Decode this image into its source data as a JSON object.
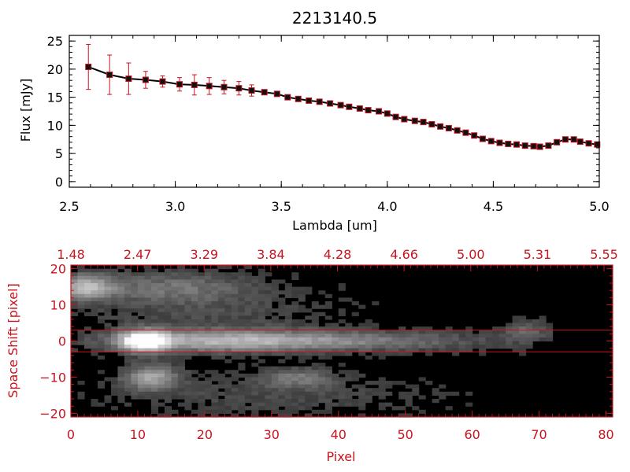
{
  "chart_data": [
    {
      "type": "line",
      "title": "2213140.5",
      "xlabel": "Lambda [um]",
      "ylabel": "Flux [mJy]",
      "xlim": [
        2.5,
        5.0
      ],
      "ylim": [
        -1,
        26
      ],
      "xticks": [
        "2.5",
        "3.0",
        "3.5",
        "4.0",
        "4.5",
        "5.0"
      ],
      "yticks": [
        "0",
        "5",
        "10",
        "15",
        "20",
        "25"
      ],
      "ytick_values": [
        0,
        5,
        10,
        15,
        20,
        25
      ],
      "xtick_values": [
        2.5,
        3.0,
        3.5,
        4.0,
        4.5,
        5.0
      ],
      "line_color": "#000000",
      "marker_color": "#c8141e",
      "errorbar_color": "#c8141e",
      "series": [
        {
          "x": [
            2.59,
            2.69,
            2.78,
            2.86,
            2.94,
            3.02,
            3.09,
            3.16,
            3.23,
            3.3,
            3.36,
            3.42,
            3.48,
            3.53,
            3.58,
            3.63,
            3.68,
            3.73,
            3.78,
            3.82,
            3.87,
            3.91,
            3.96,
            4.0,
            4.04,
            4.08,
            4.13,
            4.17,
            4.21,
            4.25,
            4.29,
            4.33,
            4.37,
            4.41,
            4.45,
            4.49,
            4.53,
            4.57,
            4.61,
            4.65,
            4.69,
            4.72,
            4.76,
            4.8,
            4.84,
            4.88,
            4.91,
            4.95,
            4.99
          ],
          "y": [
            20.4,
            19.0,
            18.3,
            18.1,
            17.8,
            17.3,
            17.2,
            17.0,
            16.8,
            16.6,
            16.2,
            15.9,
            15.6,
            15.0,
            14.7,
            14.4,
            14.2,
            13.9,
            13.6,
            13.3,
            13.0,
            12.7,
            12.5,
            12.1,
            11.5,
            11.1,
            10.8,
            10.6,
            10.2,
            9.8,
            9.5,
            9.1,
            8.7,
            8.2,
            7.6,
            7.2,
            6.9,
            6.7,
            6.6,
            6.4,
            6.3,
            6.2,
            6.4,
            7.0,
            7.5,
            7.5,
            7.1,
            6.8,
            6.6
          ],
          "yerr": [
            4.0,
            3.5,
            2.8,
            1.5,
            1.0,
            1.2,
            1.8,
            1.5,
            1.2,
            1.2,
            1.0,
            0.4,
            0.4,
            0.3,
            0.3,
            0.3,
            0.3,
            0.3,
            0.3,
            0.3,
            0.3,
            0.3,
            0.3,
            0.3,
            0.3,
            0.3,
            0.3,
            0.3,
            0.3,
            0.3,
            0.3,
            0.3,
            0.3,
            0.3,
            0.3,
            0.3,
            0.3,
            0.3,
            0.3,
            0.3,
            0.3,
            0.3,
            0.3,
            0.3,
            0.3,
            0.3,
            0.3,
            0.3,
            0.3
          ]
        }
      ]
    },
    {
      "type": "heatmap",
      "xlabel": "Pixel",
      "ylabel": "Space Shift [pixel]",
      "xlim": [
        0,
        81
      ],
      "ylim": [
        -21,
        21
      ],
      "xticks": [
        "0",
        "10",
        "20",
        "30",
        "40",
        "50",
        "60",
        "70",
        "80"
      ],
      "xtick_values": [
        0,
        10,
        20,
        30,
        40,
        50,
        60,
        70,
        80
      ],
      "yticks": [
        "−20",
        "−10",
        "0",
        "10",
        "20"
      ],
      "ytick_values": [
        -20,
        -10,
        0,
        10,
        20
      ],
      "top_axis_ticks": [
        "1.48",
        "2.47",
        "3.29",
        "3.84",
        "4.28",
        "4.66",
        "5.00",
        "5.31",
        "5.55"
      ],
      "axis_color": "#c8141e",
      "extraction_lines": [
        3,
        -3
      ],
      "colormap": "grayscale",
      "features": [
        {
          "x": 11,
          "y": 0,
          "peak": 1.0,
          "sx": 2.5,
          "sy": 2.0
        },
        {
          "x": 22,
          "y": 0,
          "peak": 0.55,
          "sx": 12,
          "sy": 2.2
        },
        {
          "x": 45,
          "y": 0,
          "peak": 0.32,
          "sx": 14,
          "sy": 2.0
        },
        {
          "x": 12,
          "y": -10,
          "peak": 0.55,
          "sx": 3,
          "sy": 2.5
        },
        {
          "x": 34,
          "y": -10,
          "peak": 0.32,
          "sx": 4,
          "sy": 2.0
        },
        {
          "x": 2,
          "y": 15,
          "peak": 0.6,
          "sx": 3,
          "sy": 2.5
        },
        {
          "x": 15,
          "y": 15,
          "peak": 0.3,
          "sx": 9,
          "sy": 3
        },
        {
          "x": 68,
          "y": 3,
          "peak": 0.28,
          "sx": 2.5,
          "sy": 2
        },
        {
          "x": 20,
          "y": 8,
          "peak": 0.15,
          "sx": 15,
          "sy": 5
        },
        {
          "x": 30,
          "y": -15,
          "peak": 0.15,
          "sx": 18,
          "sy": 4
        }
      ]
    }
  ]
}
